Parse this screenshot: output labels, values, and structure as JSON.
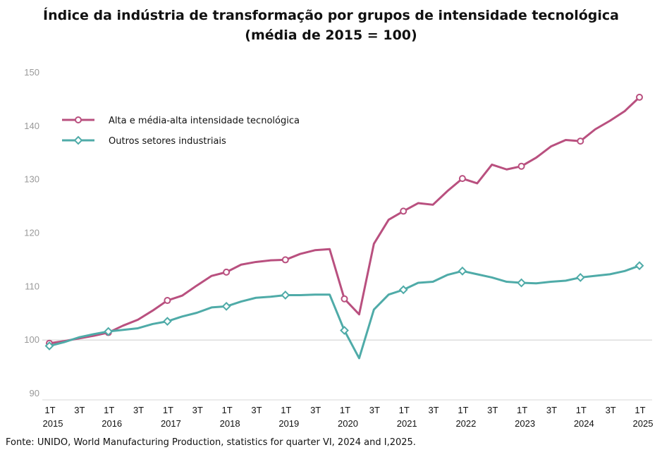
{
  "chart_data": {
    "type": "line",
    "title": "Índice da indústria de transformação por grupos de intensidade tecnológica",
    "subtitle": "(média de 2015 = 100)",
    "source": "Fonte: UNIDO, World  Manufacturing Production,  statistics for quarter VI, 2024 and I,2025.",
    "ylim": [
      90,
      150
    ],
    "yticks": [
      90,
      100,
      110,
      120,
      130,
      140,
      150
    ],
    "grid": false,
    "baseline": 100,
    "legend_position": "top-left",
    "x": [
      "1T 2015",
      "2T 2015",
      "3T 2015",
      "4T 2015",
      "1T 2016",
      "2T 2016",
      "3T 2016",
      "4T 2016",
      "1T 2017",
      "2T 2017",
      "3T 2017",
      "4T 2017",
      "1T 2018",
      "2T 2018",
      "3T 2018",
      "4T 2018",
      "1T 2019",
      "2T 2019",
      "3T 2019",
      "4T 2019",
      "1T 2020",
      "2T 2020",
      "3T 2020",
      "4T 2020",
      "1T 2021",
      "2T 2021",
      "3T 2021",
      "4T 2021",
      "1T 2022",
      "2T 2022",
      "3T 2022",
      "4T 2022",
      "1T 2023",
      "2T 2023",
      "3T 2023",
      "4T 2023",
      "1T 2024",
      "2T 2024",
      "3T 2024",
      "4T 2024",
      "1T 2025"
    ],
    "x_tick_labels": [
      {
        "quarter": "1T",
        "year": "2015"
      },
      {
        "quarter": "3T",
        "year": ""
      },
      {
        "quarter": "1T",
        "year": "2016"
      },
      {
        "quarter": "3T",
        "year": ""
      },
      {
        "quarter": "1T",
        "year": "2017"
      },
      {
        "quarter": "3T",
        "year": ""
      },
      {
        "quarter": "1T",
        "year": "2018"
      },
      {
        "quarter": "3T",
        "year": ""
      },
      {
        "quarter": "1T",
        "year": "2019"
      },
      {
        "quarter": "3T",
        "year": ""
      },
      {
        "quarter": "1T",
        "year": "2020"
      },
      {
        "quarter": "3T",
        "year": ""
      },
      {
        "quarter": "1T",
        "year": "2021"
      },
      {
        "quarter": "3T",
        "year": ""
      },
      {
        "quarter": "1T",
        "year": "2022"
      },
      {
        "quarter": "3T",
        "year": ""
      },
      {
        "quarter": "1T",
        "year": "2023"
      },
      {
        "quarter": "3T",
        "year": ""
      },
      {
        "quarter": "1T",
        "year": "2024"
      },
      {
        "quarter": "3T",
        "year": ""
      },
      {
        "quarter": "1T",
        "year": "2025"
      }
    ],
    "series": [
      {
        "name": "Alta e média-alta intensidade tecnológica",
        "color": "#B9507F",
        "marker": "circle",
        "values": [
          99.4,
          99.8,
          100.3,
          100.8,
          101.4,
          102.7,
          103.8,
          105.5,
          107.4,
          108.3,
          110.2,
          112.0,
          112.7,
          114.1,
          114.6,
          114.9,
          115.0,
          116.1,
          116.8,
          117.0,
          107.7,
          104.8,
          118.0,
          122.5,
          124.1,
          125.6,
          125.3,
          127.9,
          130.2,
          129.3,
          132.8,
          131.9,
          132.5,
          134.1,
          136.2,
          137.4,
          137.2,
          139.4,
          141.0,
          142.8,
          145.4
        ]
      },
      {
        "name": "Outros setores industriais",
        "color": "#4FABA8",
        "marker": "diamond",
        "values": [
          98.9,
          99.6,
          100.5,
          101.1,
          101.6,
          101.9,
          102.2,
          103.0,
          103.5,
          104.4,
          105.1,
          106.1,
          106.3,
          107.2,
          107.9,
          108.1,
          108.4,
          108.4,
          108.5,
          108.5,
          101.8,
          96.6,
          105.7,
          108.5,
          109.4,
          110.7,
          110.9,
          112.2,
          112.9,
          112.3,
          111.7,
          110.9,
          110.7,
          110.6,
          110.9,
          111.1,
          111.7,
          112.0,
          112.3,
          112.9,
          113.9
        ]
      }
    ]
  }
}
